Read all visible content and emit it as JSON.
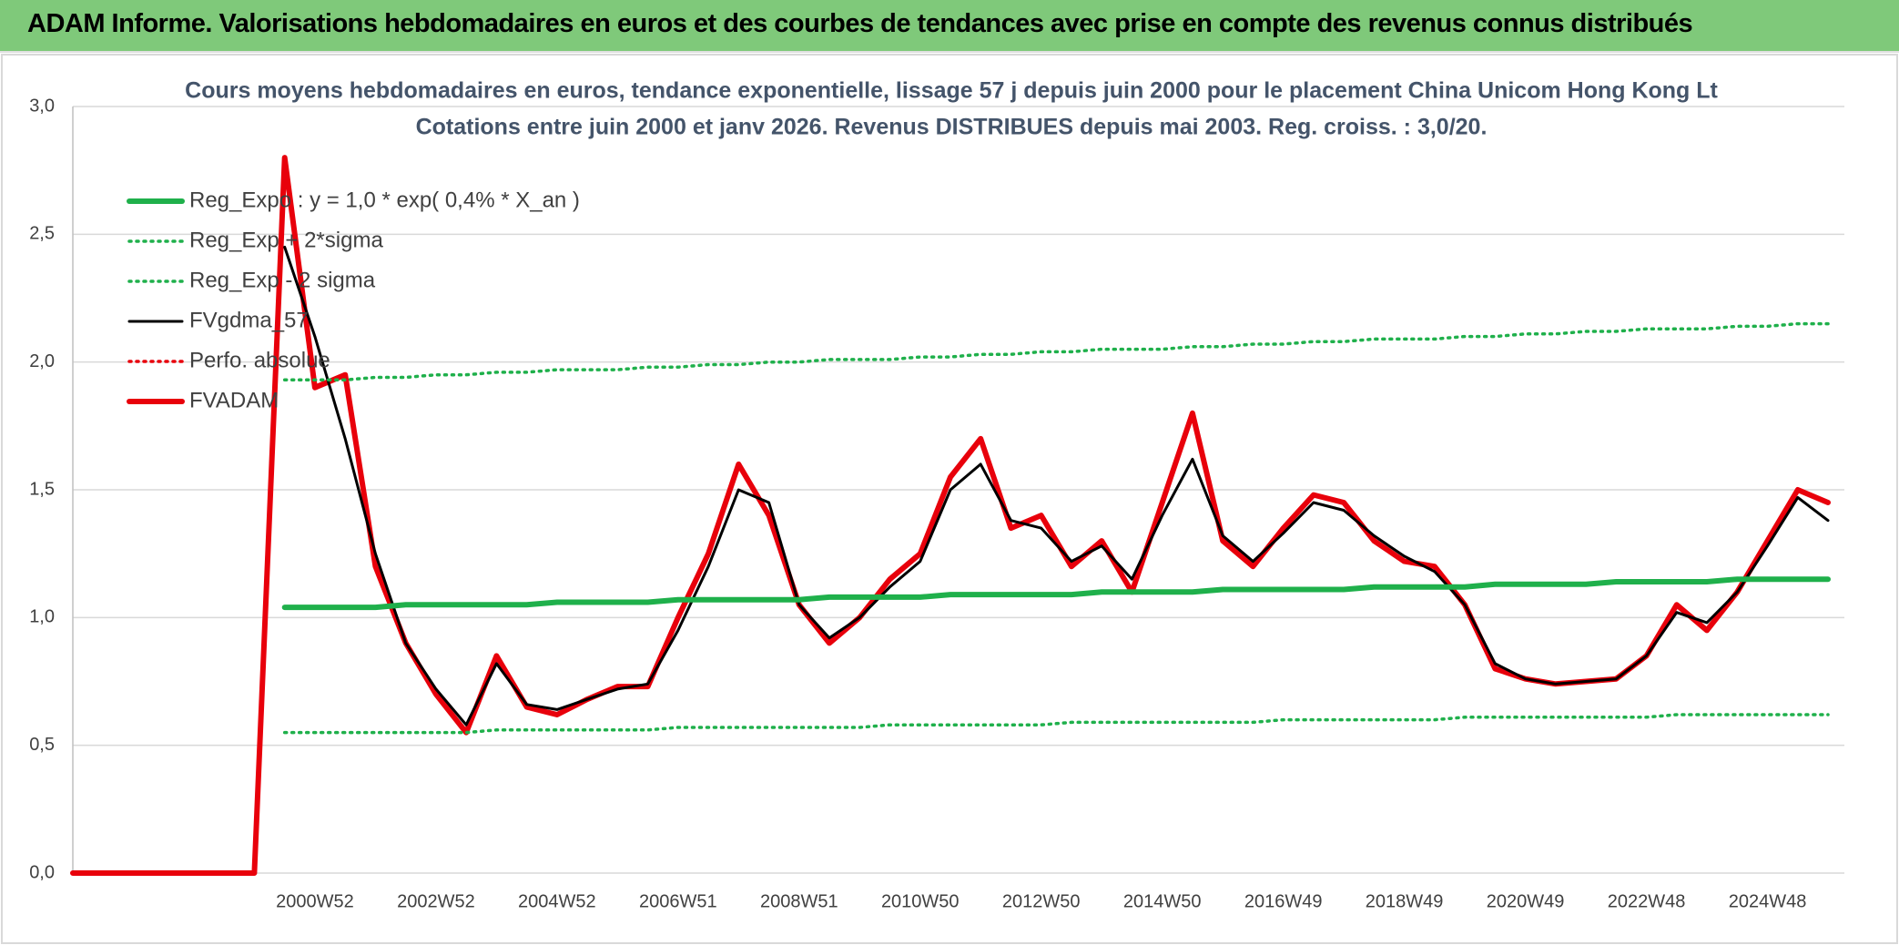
{
  "header": "ADAM Informe. Valorisations hebdomadaires en euros et des courbes de tendances avec prise en compte des revenus connus distribués",
  "chart_data": {
    "type": "line",
    "title": "Cours moyens hebdomadaires en euros, tendance exponentielle, lissage 57 j depuis juin 2000 pour le placement China Unicom Hong Kong Lt",
    "subtitle": "Cotations entre juin 2000 et janv 2026. Revenus DISTRIBUES depuis mai 2003. Reg. croiss. : 3,0/20.",
    "categories": [
      null,
      null,
      null,
      null,
      null,
      null,
      null,
      null,
      "2000W52",
      null,
      null,
      null,
      "2002W52",
      null,
      null,
      null,
      "2004W52",
      null,
      null,
      null,
      "2006W51",
      null,
      null,
      null,
      "2008W51",
      null,
      null,
      null,
      "2010W50",
      null,
      null,
      null,
      "2012W50",
      null,
      null,
      null,
      "2014W50",
      null,
      null,
      null,
      "2016W49",
      null,
      null,
      null,
      "2018W49",
      null,
      null,
      null,
      "2020W49",
      null,
      null,
      null,
      "2022W48",
      null,
      null,
      null,
      "2024W48",
      null,
      null
    ],
    "ylim": [
      0,
      3
    ],
    "yticks": [
      {
        "value": 0,
        "label": "0,0"
      },
      {
        "value": 0.5,
        "label": "0,5"
      },
      {
        "value": 1,
        "label": "1,0"
      },
      {
        "value": 1.5,
        "label": "1,5"
      },
      {
        "value": 2,
        "label": "2,0"
      },
      {
        "value": 2.5,
        "label": "2,5"
      },
      {
        "value": 3,
        "label": "3,0"
      }
    ],
    "grid": true,
    "legend": "upper-left",
    "series": [
      {
        "name": "Reg_Expo : y = 1,0 * exp( 0,4% *  X_an )",
        "color": "#1fb04b",
        "style": "thick",
        "values": [
          null,
          null,
          null,
          null,
          null,
          null,
          null,
          1.04,
          1.04,
          1.04,
          1.04,
          1.05,
          1.05,
          1.05,
          1.05,
          1.05,
          1.06,
          1.06,
          1.06,
          1.06,
          1.07,
          1.07,
          1.07,
          1.07,
          1.07,
          1.08,
          1.08,
          1.08,
          1.08,
          1.09,
          1.09,
          1.09,
          1.09,
          1.09,
          1.1,
          1.1,
          1.1,
          1.1,
          1.11,
          1.11,
          1.11,
          1.11,
          1.11,
          1.12,
          1.12,
          1.12,
          1.12,
          1.13,
          1.13,
          1.13,
          1.13,
          1.14,
          1.14,
          1.14,
          1.14,
          1.15,
          1.15,
          1.15,
          1.15
        ]
      },
      {
        "name": "Reg_Exp + 2*sigma",
        "color": "#1fb04b",
        "style": "dotted",
        "values": [
          null,
          null,
          null,
          null,
          null,
          null,
          null,
          1.93,
          1.93,
          1.93,
          1.94,
          1.94,
          1.95,
          1.95,
          1.96,
          1.96,
          1.97,
          1.97,
          1.97,
          1.98,
          1.98,
          1.99,
          1.99,
          2.0,
          2.0,
          2.01,
          2.01,
          2.01,
          2.02,
          2.02,
          2.03,
          2.03,
          2.04,
          2.04,
          2.05,
          2.05,
          2.05,
          2.06,
          2.06,
          2.07,
          2.07,
          2.08,
          2.08,
          2.09,
          2.09,
          2.09,
          2.1,
          2.1,
          2.11,
          2.11,
          2.12,
          2.12,
          2.13,
          2.13,
          2.13,
          2.14,
          2.14,
          2.15,
          2.15
        ]
      },
      {
        "name": "Reg_Exp - 2 sigma",
        "color": "#1fb04b",
        "style": "dotted",
        "values": [
          null,
          null,
          null,
          null,
          null,
          null,
          null,
          0.55,
          0.55,
          0.55,
          0.55,
          0.55,
          0.55,
          0.55,
          0.56,
          0.56,
          0.56,
          0.56,
          0.56,
          0.56,
          0.57,
          0.57,
          0.57,
          0.57,
          0.57,
          0.57,
          0.57,
          0.58,
          0.58,
          0.58,
          0.58,
          0.58,
          0.58,
          0.59,
          0.59,
          0.59,
          0.59,
          0.59,
          0.59,
          0.59,
          0.6,
          0.6,
          0.6,
          0.6,
          0.6,
          0.6,
          0.61,
          0.61,
          0.61,
          0.61,
          0.61,
          0.61,
          0.61,
          0.62,
          0.62,
          0.62,
          0.62,
          0.62,
          0.62
        ]
      },
      {
        "name": "FVgdma_57",
        "color": "#000000",
        "style": "thin",
        "values": [
          null,
          null,
          null,
          null,
          null,
          null,
          null,
          2.45,
          2.1,
          1.7,
          1.25,
          0.9,
          0.72,
          0.58,
          0.82,
          0.66,
          0.64,
          0.68,
          0.72,
          0.74,
          0.95,
          1.2,
          1.5,
          1.45,
          1.05,
          0.92,
          1.0,
          1.12,
          1.22,
          1.5,
          1.6,
          1.38,
          1.35,
          1.22,
          1.28,
          1.15,
          1.4,
          1.62,
          1.32,
          1.22,
          1.33,
          1.45,
          1.42,
          1.32,
          1.24,
          1.18,
          1.05,
          0.82,
          0.76,
          0.74,
          0.75,
          0.76,
          0.85,
          1.02,
          0.98,
          1.1,
          1.28,
          1.47,
          1.38
        ]
      },
      {
        "name": "Perfo. absolue",
        "color": "#e8000b",
        "style": "dotted",
        "values": [
          null,
          null,
          null,
          null,
          null,
          null,
          null,
          null,
          null,
          null,
          null,
          null,
          null,
          null,
          null,
          null,
          null,
          null,
          null,
          null,
          null,
          null,
          null,
          null,
          null,
          null,
          null,
          null,
          null,
          null,
          null,
          null,
          null,
          null,
          null,
          null,
          null,
          null,
          null,
          null,
          null,
          null,
          null,
          null,
          null,
          null,
          null,
          null,
          null,
          null,
          null,
          null,
          null,
          null,
          null,
          null,
          null,
          null,
          null
        ]
      },
      {
        "name": "FVADAM",
        "color": "#e8000b",
        "style": "thick",
        "values": [
          0,
          0,
          0,
          0,
          0,
          0,
          0,
          2.8,
          1.9,
          1.95,
          1.2,
          0.9,
          0.7,
          0.55,
          0.85,
          0.65,
          0.62,
          0.68,
          0.73,
          0.73,
          1.0,
          1.25,
          1.6,
          1.4,
          1.05,
          0.9,
          1.0,
          1.15,
          1.25,
          1.55,
          1.7,
          1.35,
          1.4,
          1.2,
          1.3,
          1.1,
          1.45,
          1.8,
          1.3,
          1.2,
          1.35,
          1.48,
          1.45,
          1.3,
          1.22,
          1.2,
          1.05,
          0.8,
          0.76,
          0.74,
          0.75,
          0.76,
          0.85,
          1.05,
          0.95,
          1.1,
          1.3,
          1.5,
          1.45
        ]
      }
    ]
  }
}
